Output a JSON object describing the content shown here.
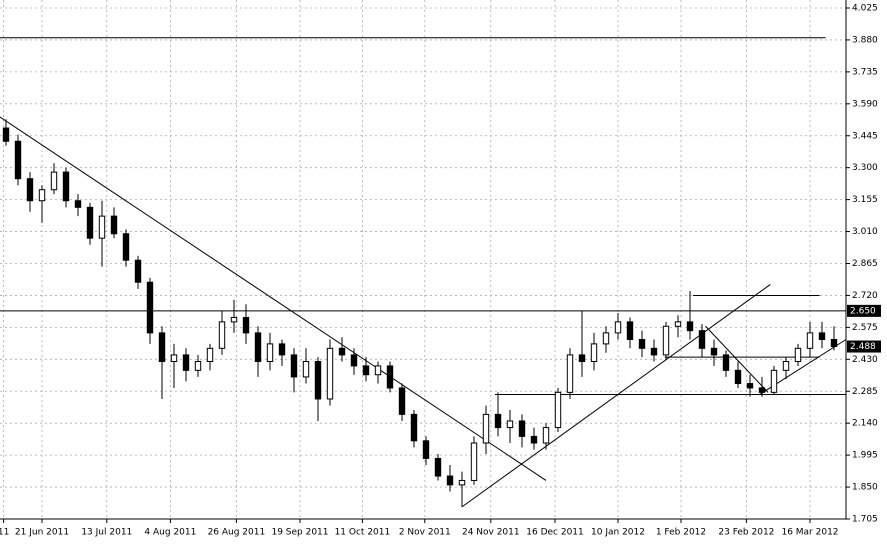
{
  "chart_data": {
    "type": "candlestick",
    "x": [
      0.5,
      1.5,
      2.5,
      3.5,
      4.5,
      5.5,
      6.5,
      7.5,
      8.5,
      9.5,
      10.5,
      11.5,
      12.5,
      13.5,
      14.5,
      15.5,
      16.5,
      17.5,
      18.5,
      19.5,
      20.5,
      21.5,
      22.5,
      23.5,
      24.5,
      25.5,
      26.5,
      27.5,
      28.5,
      29.5,
      30.5,
      31.5,
      32.5,
      33.5,
      34.5,
      35.5,
      36.5,
      37.5,
      38.5,
      39.5,
      40.5,
      41.5,
      42.5,
      43.5,
      44.5,
      45.5,
      46.5,
      47.5,
      48.5,
      49.5,
      50.5,
      51.5,
      52.5,
      53.5,
      54.5,
      55.5,
      56.5,
      57.5,
      58.5,
      59.5,
      60.5,
      61.5,
      62.5,
      63.5,
      64.5,
      65.5,
      66.5,
      67.5,
      68.5,
      69.5
    ],
    "open": [
      3.48,
      3.42,
      3.25,
      3.15,
      3.2,
      3.28,
      3.15,
      3.12,
      2.98,
      3.08,
      3.0,
      2.88,
      2.78,
      2.55,
      2.42,
      2.45,
      2.38,
      2.42,
      2.48,
      2.6,
      2.62,
      2.55,
      2.42,
      2.5,
      2.45,
      2.35,
      2.42,
      2.25,
      2.48,
      2.45,
      2.4,
      2.36,
      2.4,
      2.3,
      2.18,
      2.06,
      1.98,
      1.9,
      1.86,
      1.88,
      2.05,
      2.18,
      2.12,
      2.15,
      2.08,
      2.05,
      2.12,
      2.28,
      2.45,
      2.42,
      2.5,
      2.55,
      2.6,
      2.52,
      2.48,
      2.45,
      2.58,
      2.6,
      2.56,
      2.48,
      2.45,
      2.38,
      2.32,
      2.3,
      2.28,
      2.38,
      2.42,
      2.48,
      2.55,
      2.52
    ],
    "high": [
      3.52,
      3.45,
      3.28,
      3.22,
      3.32,
      3.3,
      3.18,
      3.14,
      3.15,
      3.12,
      3.02,
      2.9,
      2.8,
      2.58,
      2.5,
      2.48,
      2.45,
      2.5,
      2.65,
      2.7,
      2.68,
      2.58,
      2.55,
      2.52,
      2.48,
      2.48,
      2.44,
      2.52,
      2.53,
      2.48,
      2.44,
      2.42,
      2.42,
      2.32,
      2.2,
      2.08,
      2.0,
      1.95,
      1.92,
      2.08,
      2.22,
      2.28,
      2.2,
      2.18,
      2.12,
      2.14,
      2.3,
      2.48,
      2.65,
      2.55,
      2.58,
      2.64,
      2.62,
      2.56,
      2.52,
      2.6,
      2.63,
      2.74,
      2.59,
      2.52,
      2.47,
      2.42,
      2.36,
      2.35,
      2.4,
      2.44,
      2.5,
      2.6,
      2.6,
      2.58
    ],
    "low": [
      3.4,
      3.22,
      3.1,
      3.05,
      3.18,
      3.12,
      3.08,
      2.95,
      2.85,
      2.98,
      2.85,
      2.75,
      2.5,
      2.25,
      2.3,
      2.33,
      2.35,
      2.38,
      2.45,
      2.55,
      2.5,
      2.35,
      2.38,
      2.4,
      2.28,
      2.32,
      2.15,
      2.22,
      2.42,
      2.36,
      2.33,
      2.32,
      2.28,
      2.15,
      2.03,
      1.95,
      1.88,
      1.83,
      1.76,
      1.86,
      2.0,
      2.08,
      2.05,
      2.03,
      2.02,
      2.02,
      2.1,
      2.25,
      2.35,
      2.38,
      2.46,
      2.52,
      2.48,
      2.44,
      2.42,
      2.43,
      2.53,
      2.52,
      2.44,
      2.4,
      2.35,
      2.3,
      2.26,
      2.26,
      2.27,
      2.34,
      2.4,
      2.44,
      2.48,
      2.47
    ],
    "close": [
      3.42,
      3.25,
      3.15,
      3.2,
      3.28,
      3.15,
      3.12,
      2.98,
      3.08,
      3.0,
      2.88,
      2.78,
      2.55,
      2.42,
      2.45,
      2.38,
      2.42,
      2.48,
      2.6,
      2.62,
      2.55,
      2.42,
      2.5,
      2.45,
      2.35,
      2.42,
      2.25,
      2.48,
      2.45,
      2.4,
      2.36,
      2.4,
      2.3,
      2.18,
      2.06,
      1.98,
      1.9,
      1.86,
      1.88,
      2.05,
      2.18,
      2.12,
      2.15,
      2.08,
      2.05,
      2.12,
      2.28,
      2.45,
      2.42,
      2.5,
      2.55,
      2.6,
      2.52,
      2.48,
      2.45,
      2.58,
      2.6,
      2.56,
      2.48,
      2.45,
      2.38,
      2.32,
      2.3,
      2.28,
      2.38,
      2.42,
      2.48,
      2.55,
      2.52,
      2.488
    ],
    "xlim": [
      0,
      70.5
    ],
    "xticks": [
      {
        "value": 0.3,
        "label": "11"
      },
      {
        "value": 3.5,
        "label": "21 Jun 2011"
      },
      {
        "value": 8.9,
        "label": "13 Jul 2011"
      },
      {
        "value": 14.2,
        "label": "4 Aug 2011"
      },
      {
        "value": 19.7,
        "label": "26 Aug 2011"
      },
      {
        "value": 25,
        "label": "19 Sep 2011"
      },
      {
        "value": 30.2,
        "label": "11 Oct 2011"
      },
      {
        "value": 35.4,
        "label": "2 Nov 2011"
      },
      {
        "value": 40.9,
        "label": "24 Nov 2011"
      },
      {
        "value": 46.25,
        "label": "16 Dec 2011"
      },
      {
        "value": 51.5,
        "label": "10 Jan 2012"
      },
      {
        "value": 56.75,
        "label": "1 Feb 2012"
      },
      {
        "value": 62.2,
        "label": "23 Feb 2012"
      },
      {
        "value": 67.5,
        "label": "16 Mar 2012"
      }
    ],
    "ylim": [
      1.705,
      4.025
    ],
    "yticks": [
      4.025,
      {
        "value": 3.88,
        "label": "3.880"
      },
      3.735,
      {
        "value": 3.59,
        "label": "3.590"
      },
      3.445,
      {
        "value": 3.3,
        "label": "3.300"
      },
      3.155,
      {
        "value": 3.01,
        "label": "3.010"
      },
      2.865,
      {
        "value": 2.72,
        "label": "2.720"
      },
      2.575,
      {
        "value": 2.43,
        "label": "2.430"
      },
      2.285,
      {
        "value": 2.14,
        "label": "2.140"
      },
      1.995,
      {
        "value": 1.85,
        "label": "1.850"
      },
      1.705
    ],
    "grid": true,
    "lines": [
      {
        "x": [
          0,
          68.8
        ],
        "y": [
          3.89,
          3.89
        ]
      },
      {
        "x": [
          0,
          70.5
        ],
        "y": [
          2.65,
          2.65
        ]
      },
      {
        "x": [
          57.75,
          68.3
        ],
        "y": [
          2.72,
          2.72
        ]
      },
      {
        "x": [
          55.4,
          68.3
        ],
        "y": [
          2.44,
          2.44
        ]
      },
      {
        "x": [
          41.25,
          70.5
        ],
        "y": [
          2.27,
          2.27
        ]
      },
      {
        "x": [
          0,
          45.5
        ],
        "y": [
          3.53,
          1.88
        ]
      },
      {
        "x": [
          38.5,
          64.2
        ],
        "y": [
          1.76,
          2.77
        ]
      },
      {
        "x": [
          58.8,
          64
        ],
        "y": [
          2.58,
          2.28
        ]
      },
      {
        "x": [
          63.3,
          70.5
        ],
        "y": [
          2.27,
          2.52
        ]
      }
    ],
    "price_tags": [
      {
        "value": 2.65,
        "label": "2.650"
      },
      {
        "value": 2.488,
        "label": "2.488"
      }
    ]
  }
}
